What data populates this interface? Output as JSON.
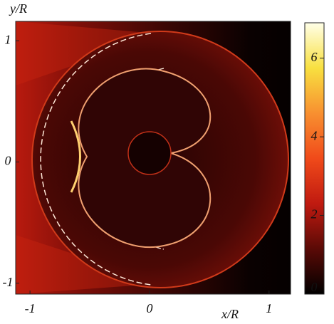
{
  "chart_data": {
    "type": "heatmap",
    "x_label": "x/R",
    "y_label": "y/R",
    "xlim": [
      -1.12,
      1.18
    ],
    "xticks": [
      -1,
      0,
      1
    ],
    "ylim": [
      -1.09,
      1.16
    ],
    "yticks": [
      -1,
      0,
      1
    ],
    "colorbar": {
      "lim": [
        0,
        6.9
      ],
      "ticks": [
        0,
        2,
        4,
        6
      ],
      "colors": [
        "#000000",
        "#5a0a06",
        "#c01a10",
        "#f04a1a",
        "#f89030",
        "#f8e040",
        "#ffffe8"
      ]
    }
  }
}
